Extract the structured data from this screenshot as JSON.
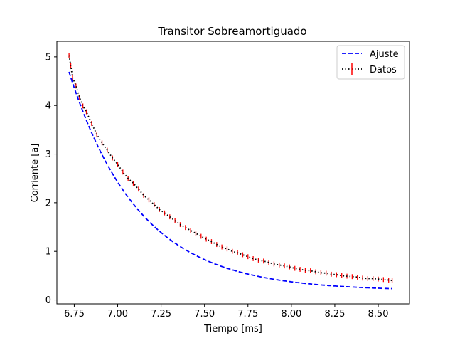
{
  "chart_data": {
    "type": "line",
    "title": "Transitor Sobreamortiguado",
    "xlabel": "Tiempo [ms]",
    "ylabel": "Corriente [a]",
    "xlim": [
      6.65,
      8.68
    ],
    "ylim": [
      -0.08,
      5.32
    ],
    "xticks": [
      6.75,
      7.0,
      7.25,
      7.5,
      7.75,
      8.0,
      8.25,
      8.5
    ],
    "xtick_labels": [
      "6.75",
      "7.00",
      "7.25",
      "7.50",
      "7.75",
      "8.00",
      "8.25",
      "8.50"
    ],
    "yticks": [
      0,
      1,
      2,
      3,
      4,
      5
    ],
    "ytick_labels": [
      "0",
      "1",
      "2",
      "3",
      "4",
      "5"
    ],
    "grid": false,
    "legend_position": "top-right",
    "series": [
      {
        "name": "Ajuste",
        "style": "dashed",
        "color": "#0000ff",
        "model": {
          "a": 0.19,
          "b": 4.5,
          "x0": 6.72,
          "tau": 0.4
        },
        "x": [
          6.72,
          6.78,
          6.85,
          6.92,
          7.0,
          7.1,
          7.2,
          7.3,
          7.4,
          7.5,
          7.6,
          7.7,
          7.8,
          7.9,
          8.0,
          8.1,
          8.2,
          8.3,
          8.4,
          8.5,
          8.58
        ],
        "values": [
          4.69,
          4.15,
          3.6,
          3.14,
          2.68,
          2.21,
          1.83,
          1.53,
          1.29,
          1.09,
          0.94,
          0.81,
          0.71,
          0.63,
          0.56,
          0.51,
          0.47,
          0.44,
          0.4,
          0.38,
          0.36
        ]
      },
      {
        "name": "Datos",
        "style": "dotted-errorbar",
        "color": "#000000",
        "errcolor": "#ff0000",
        "x": [
          6.72,
          6.73,
          6.74,
          6.76,
          6.78,
          6.8,
          6.82,
          6.85,
          6.88,
          6.91,
          6.94,
          6.97,
          7.0,
          7.03,
          7.06,
          7.09,
          7.12,
          7.15,
          7.18,
          7.21,
          7.24,
          7.27,
          7.3,
          7.33,
          7.36,
          7.39,
          7.42,
          7.45,
          7.48,
          7.51,
          7.54,
          7.57,
          7.6,
          7.63,
          7.66,
          7.69,
          7.72,
          7.75,
          7.78,
          7.81,
          7.84,
          7.87,
          7.9,
          7.93,
          7.96,
          7.99,
          8.02,
          8.05,
          8.08,
          8.11,
          8.14,
          8.17,
          8.2,
          8.23,
          8.26,
          8.29,
          8.32,
          8.35,
          8.38,
          8.41,
          8.44,
          8.47,
          8.5,
          8.53,
          8.56,
          8.58
        ],
        "values": [
          5.03,
          4.82,
          4.58,
          4.4,
          4.17,
          3.99,
          3.87,
          3.63,
          3.4,
          3.23,
          3.08,
          2.92,
          2.79,
          2.63,
          2.5,
          2.4,
          2.28,
          2.15,
          2.06,
          1.96,
          1.86,
          1.79,
          1.71,
          1.63,
          1.55,
          1.49,
          1.43,
          1.37,
          1.31,
          1.25,
          1.2,
          1.14,
          1.09,
          1.05,
          1.0,
          0.97,
          0.93,
          0.89,
          0.85,
          0.82,
          0.8,
          0.77,
          0.74,
          0.72,
          0.7,
          0.68,
          0.65,
          0.63,
          0.61,
          0.6,
          0.58,
          0.56,
          0.55,
          0.53,
          0.52,
          0.5,
          0.49,
          0.48,
          0.47,
          0.45,
          0.44,
          0.44,
          0.43,
          0.42,
          0.41,
          0.4
        ],
        "yerr": 0.05
      }
    ]
  }
}
